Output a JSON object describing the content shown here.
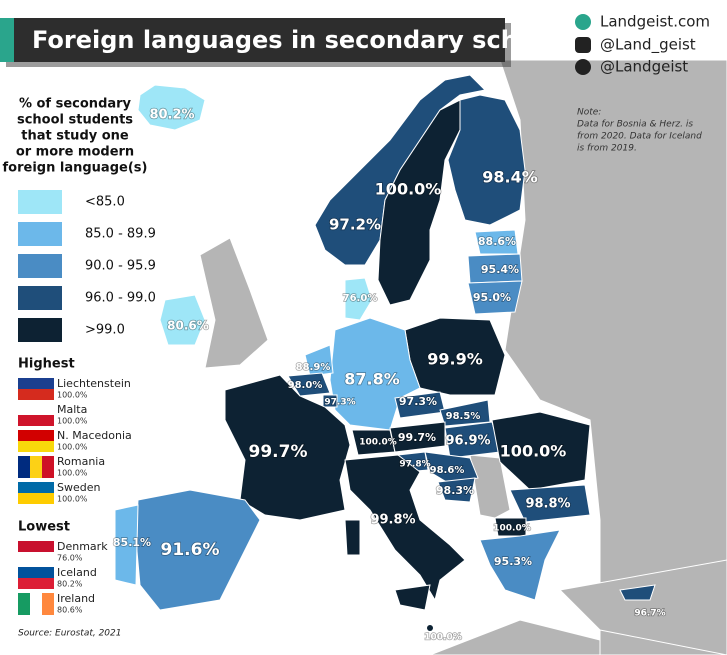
{
  "header": {
    "title": "Foreign languages in secondary school"
  },
  "brand": {
    "site": "Landgeist.com",
    "instagram": "@Land_geist",
    "twitter": "@Landgeist"
  },
  "note": [
    "Note:",
    "Data for Bosnia & Herz. is",
    "from 2020. Data for Iceland",
    "is from 2019."
  ],
  "legend": {
    "title": [
      "% of secondary",
      "school students",
      "that study one",
      "or more modern",
      "foreign language(s)"
    ],
    "bins": [
      {
        "label": "<85.0",
        "color": "#9ee6f7"
      },
      {
        "label": "85.0 - 89.9",
        "color": "#6cb8ea"
      },
      {
        "label": "90.0 - 95.9",
        "color": "#4a8cc4"
      },
      {
        "label": "96.0 - 99.0",
        "color": "#1f4e7a"
      },
      {
        "label": ">99.0",
        "color": "#0d2233"
      }
    ]
  },
  "highest": {
    "title": "Highest",
    "items": [
      {
        "name": "Liechtenstein",
        "value": "100.0%"
      },
      {
        "name": "Malta",
        "value": "100.0%"
      },
      {
        "name": "N. Macedonia",
        "value": "100.0%"
      },
      {
        "name": "Romania",
        "value": "100.0%"
      },
      {
        "name": "Sweden",
        "value": "100.0%"
      }
    ]
  },
  "lowest": {
    "title": "Lowest",
    "items": [
      {
        "name": "Denmark",
        "value": "76.0%"
      },
      {
        "name": "Iceland",
        "value": "80.2%"
      },
      {
        "name": "Ireland",
        "value": "80.6%"
      }
    ]
  },
  "source": "Source: Eurostat, 2021",
  "map_labels": [
    "80.2%",
    "100.0%",
    "98.4%",
    "97.2%",
    "88.6%",
    "95.4%",
    "95.0%",
    "76.0%",
    "80.6%",
    "99.9%",
    "88.9%",
    "98.0%",
    "87.8%",
    "97.3%",
    "97.3%",
    "98.5%",
    "100.0%",
    "99.7%",
    "96.9%",
    "100.0%",
    "99.7%",
    "97.8%",
    "98.6%",
    "98.3%",
    "98.8%",
    "99.8%",
    "85.1%",
    "91.6%",
    "100.0%",
    "95.3%",
    "96.7%",
    "100.0%"
  ]
}
